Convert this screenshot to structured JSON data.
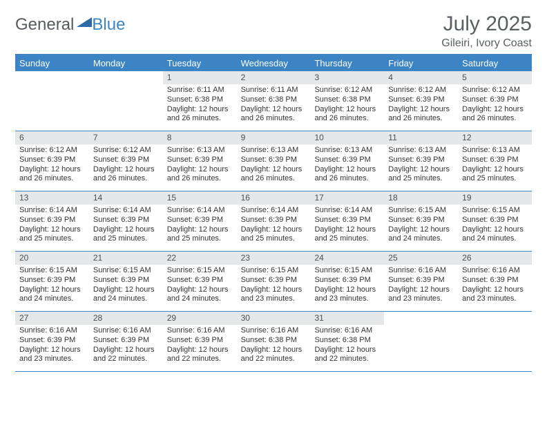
{
  "logo": {
    "general": "General",
    "blue": "Blue"
  },
  "header": {
    "month": "July 2025",
    "location": "Gileiri, Ivory Coast"
  },
  "colors": {
    "accent": "#3d84c4",
    "daybar": "#e6e7e8",
    "text": "#333333",
    "heading": "#5a5f64"
  },
  "daysOfWeek": [
    "Sunday",
    "Monday",
    "Tuesday",
    "Wednesday",
    "Thursday",
    "Friday",
    "Saturday"
  ],
  "cells": [
    {
      "n": "",
      "sr": "",
      "ss": "",
      "dl": ""
    },
    {
      "n": "",
      "sr": "",
      "ss": "",
      "dl": ""
    },
    {
      "n": "1",
      "sr": "Sunrise: 6:11 AM",
      "ss": "Sunset: 6:38 PM",
      "dl": "Daylight: 12 hours and 26 minutes."
    },
    {
      "n": "2",
      "sr": "Sunrise: 6:11 AM",
      "ss": "Sunset: 6:38 PM",
      "dl": "Daylight: 12 hours and 26 minutes."
    },
    {
      "n": "3",
      "sr": "Sunrise: 6:12 AM",
      "ss": "Sunset: 6:38 PM",
      "dl": "Daylight: 12 hours and 26 minutes."
    },
    {
      "n": "4",
      "sr": "Sunrise: 6:12 AM",
      "ss": "Sunset: 6:39 PM",
      "dl": "Daylight: 12 hours and 26 minutes."
    },
    {
      "n": "5",
      "sr": "Sunrise: 6:12 AM",
      "ss": "Sunset: 6:39 PM",
      "dl": "Daylight: 12 hours and 26 minutes."
    },
    {
      "n": "6",
      "sr": "Sunrise: 6:12 AM",
      "ss": "Sunset: 6:39 PM",
      "dl": "Daylight: 12 hours and 26 minutes."
    },
    {
      "n": "7",
      "sr": "Sunrise: 6:12 AM",
      "ss": "Sunset: 6:39 PM",
      "dl": "Daylight: 12 hours and 26 minutes."
    },
    {
      "n": "8",
      "sr": "Sunrise: 6:13 AM",
      "ss": "Sunset: 6:39 PM",
      "dl": "Daylight: 12 hours and 26 minutes."
    },
    {
      "n": "9",
      "sr": "Sunrise: 6:13 AM",
      "ss": "Sunset: 6:39 PM",
      "dl": "Daylight: 12 hours and 26 minutes."
    },
    {
      "n": "10",
      "sr": "Sunrise: 6:13 AM",
      "ss": "Sunset: 6:39 PM",
      "dl": "Daylight: 12 hours and 26 minutes."
    },
    {
      "n": "11",
      "sr": "Sunrise: 6:13 AM",
      "ss": "Sunset: 6:39 PM",
      "dl": "Daylight: 12 hours and 25 minutes."
    },
    {
      "n": "12",
      "sr": "Sunrise: 6:13 AM",
      "ss": "Sunset: 6:39 PM",
      "dl": "Daylight: 12 hours and 25 minutes."
    },
    {
      "n": "13",
      "sr": "Sunrise: 6:14 AM",
      "ss": "Sunset: 6:39 PM",
      "dl": "Daylight: 12 hours and 25 minutes."
    },
    {
      "n": "14",
      "sr": "Sunrise: 6:14 AM",
      "ss": "Sunset: 6:39 PM",
      "dl": "Daylight: 12 hours and 25 minutes."
    },
    {
      "n": "15",
      "sr": "Sunrise: 6:14 AM",
      "ss": "Sunset: 6:39 PM",
      "dl": "Daylight: 12 hours and 25 minutes."
    },
    {
      "n": "16",
      "sr": "Sunrise: 6:14 AM",
      "ss": "Sunset: 6:39 PM",
      "dl": "Daylight: 12 hours and 25 minutes."
    },
    {
      "n": "17",
      "sr": "Sunrise: 6:14 AM",
      "ss": "Sunset: 6:39 PM",
      "dl": "Daylight: 12 hours and 25 minutes."
    },
    {
      "n": "18",
      "sr": "Sunrise: 6:15 AM",
      "ss": "Sunset: 6:39 PM",
      "dl": "Daylight: 12 hours and 24 minutes."
    },
    {
      "n": "19",
      "sr": "Sunrise: 6:15 AM",
      "ss": "Sunset: 6:39 PM",
      "dl": "Daylight: 12 hours and 24 minutes."
    },
    {
      "n": "20",
      "sr": "Sunrise: 6:15 AM",
      "ss": "Sunset: 6:39 PM",
      "dl": "Daylight: 12 hours and 24 minutes."
    },
    {
      "n": "21",
      "sr": "Sunrise: 6:15 AM",
      "ss": "Sunset: 6:39 PM",
      "dl": "Daylight: 12 hours and 24 minutes."
    },
    {
      "n": "22",
      "sr": "Sunrise: 6:15 AM",
      "ss": "Sunset: 6:39 PM",
      "dl": "Daylight: 12 hours and 24 minutes."
    },
    {
      "n": "23",
      "sr": "Sunrise: 6:15 AM",
      "ss": "Sunset: 6:39 PM",
      "dl": "Daylight: 12 hours and 23 minutes."
    },
    {
      "n": "24",
      "sr": "Sunrise: 6:15 AM",
      "ss": "Sunset: 6:39 PM",
      "dl": "Daylight: 12 hours and 23 minutes."
    },
    {
      "n": "25",
      "sr": "Sunrise: 6:16 AM",
      "ss": "Sunset: 6:39 PM",
      "dl": "Daylight: 12 hours and 23 minutes."
    },
    {
      "n": "26",
      "sr": "Sunrise: 6:16 AM",
      "ss": "Sunset: 6:39 PM",
      "dl": "Daylight: 12 hours and 23 minutes."
    },
    {
      "n": "27",
      "sr": "Sunrise: 6:16 AM",
      "ss": "Sunset: 6:39 PM",
      "dl": "Daylight: 12 hours and 23 minutes."
    },
    {
      "n": "28",
      "sr": "Sunrise: 6:16 AM",
      "ss": "Sunset: 6:39 PM",
      "dl": "Daylight: 12 hours and 22 minutes."
    },
    {
      "n": "29",
      "sr": "Sunrise: 6:16 AM",
      "ss": "Sunset: 6:39 PM",
      "dl": "Daylight: 12 hours and 22 minutes."
    },
    {
      "n": "30",
      "sr": "Sunrise: 6:16 AM",
      "ss": "Sunset: 6:38 PM",
      "dl": "Daylight: 12 hours and 22 minutes."
    },
    {
      "n": "31",
      "sr": "Sunrise: 6:16 AM",
      "ss": "Sunset: 6:38 PM",
      "dl": "Daylight: 12 hours and 22 minutes."
    },
    {
      "n": "",
      "sr": "",
      "ss": "",
      "dl": ""
    },
    {
      "n": "",
      "sr": "",
      "ss": "",
      "dl": ""
    }
  ]
}
